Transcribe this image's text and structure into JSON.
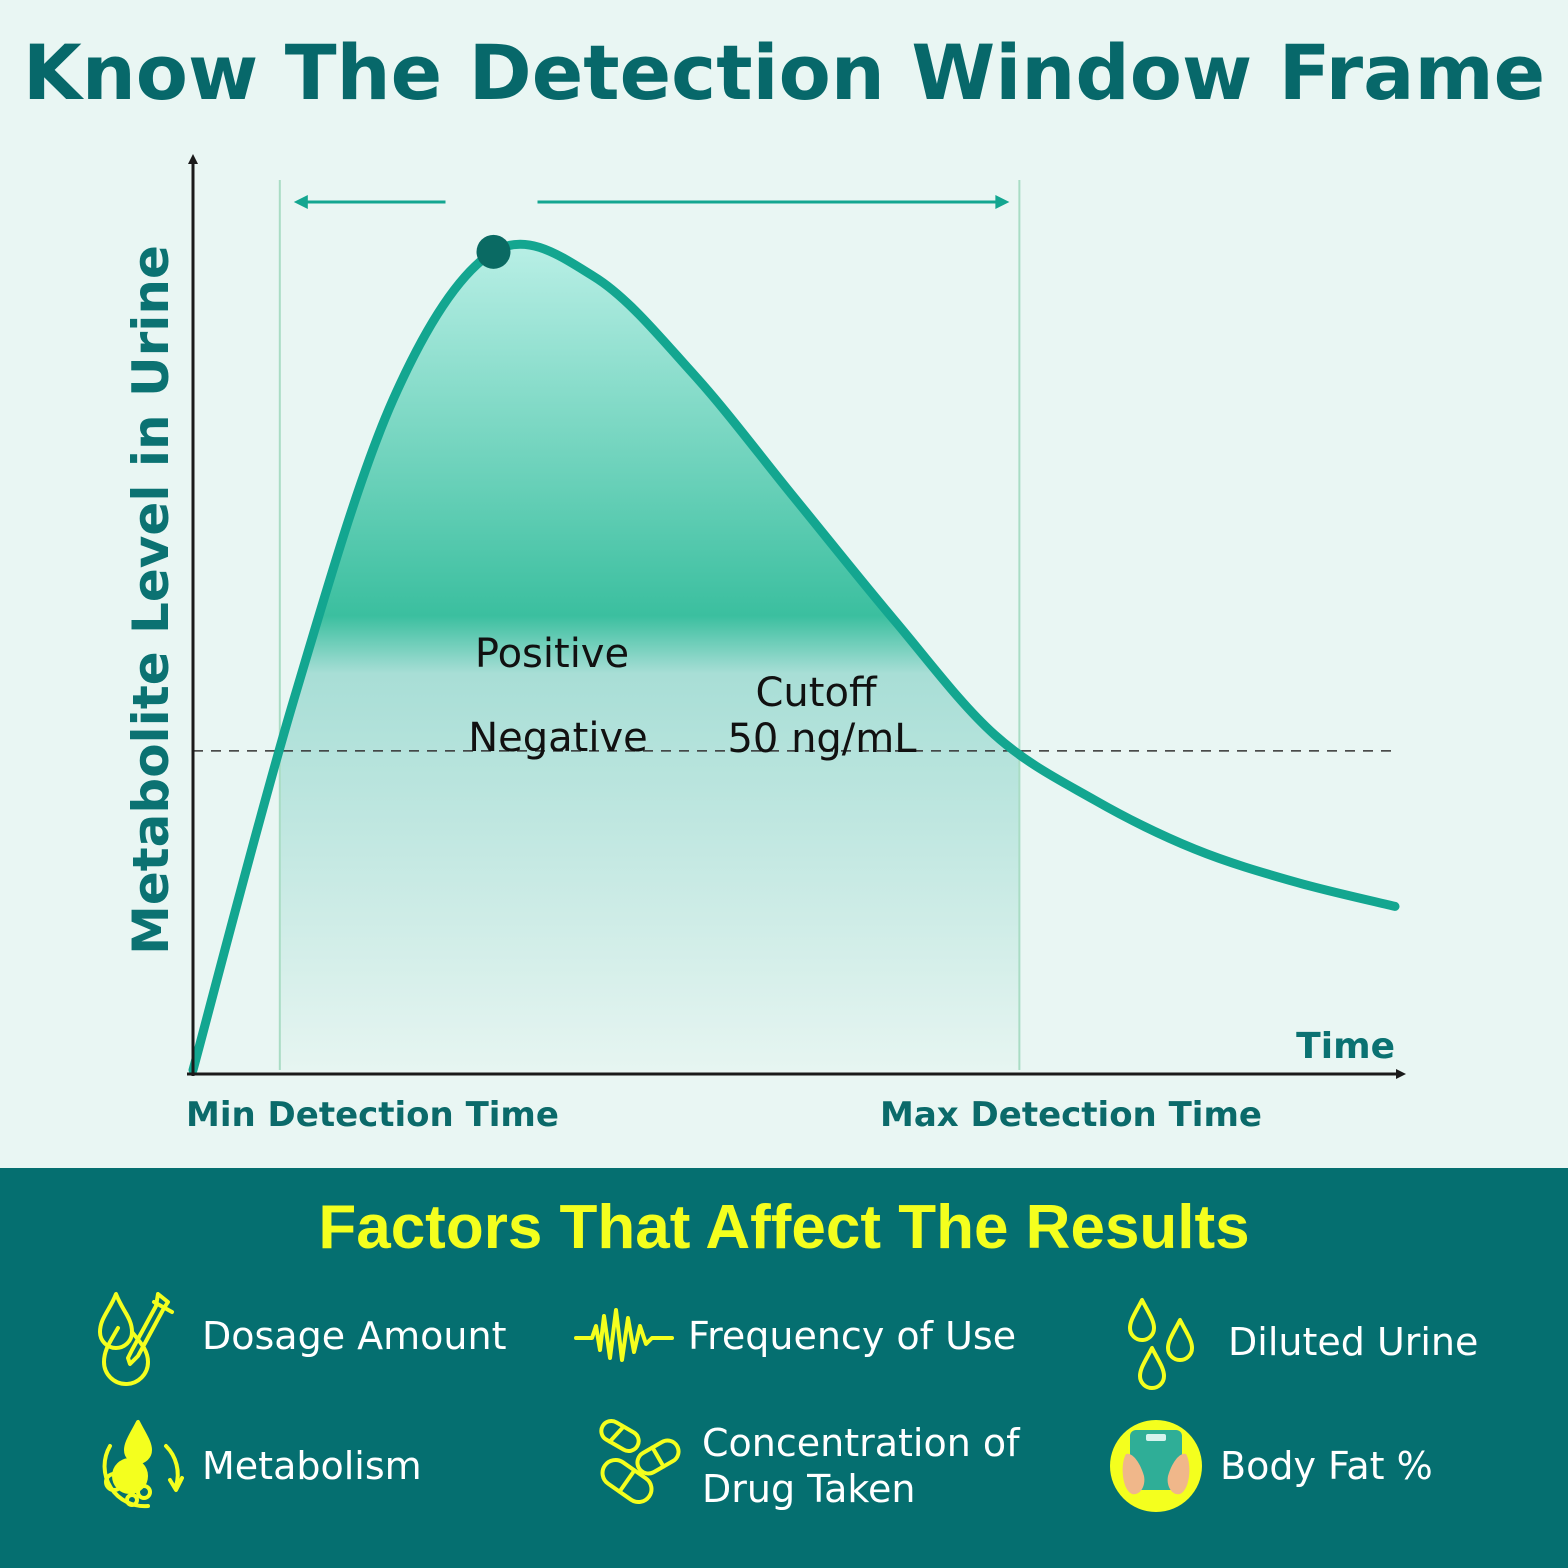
{
  "title": "Know The Detection Window Frame",
  "chart_data": {
    "type": "area",
    "xlabel": "Time",
    "ylabel": "Metabolite Level in Urine",
    "x": [
      0,
      1,
      2,
      3,
      4,
      5,
      6,
      7,
      8,
      9,
      10,
      11,
      12
    ],
    "y": [
      0,
      45,
      82,
      100,
      97,
      85,
      70,
      55,
      41,
      33,
      27,
      23,
      20
    ],
    "xlim": [
      0,
      12
    ],
    "ylim": [
      0,
      110
    ],
    "cutoff": {
      "value": 39,
      "label": "Cutoff",
      "value_label": "50 ng/mL"
    },
    "region_labels": {
      "above": "Positive",
      "below": "Negative"
    },
    "min_detection_label": "Min Detection Time",
    "max_detection_label": "Max Detection Time",
    "colors": {
      "curve": "#13a690",
      "title": "#07686a",
      "axis": "#1a1a1a"
    }
  },
  "factors": {
    "title": "Factors That Affect The Results",
    "items": [
      {
        "label": "Dosage Amount",
        "icon": "dropper-icon"
      },
      {
        "label": "Frequency of Use",
        "icon": "waveform-icon"
      },
      {
        "label": "Diluted Urine",
        "icon": "water-drops-icon"
      },
      {
        "label": "Metabolism",
        "icon": "metabolism-icon"
      },
      {
        "label": "Concentration of\nDrug Taken",
        "icon": "pills-icon"
      },
      {
        "label": "Body Fat %",
        "icon": "scale-icon"
      }
    ],
    "colors": {
      "background": "#056f70",
      "accent": "#f4ff1e"
    }
  }
}
